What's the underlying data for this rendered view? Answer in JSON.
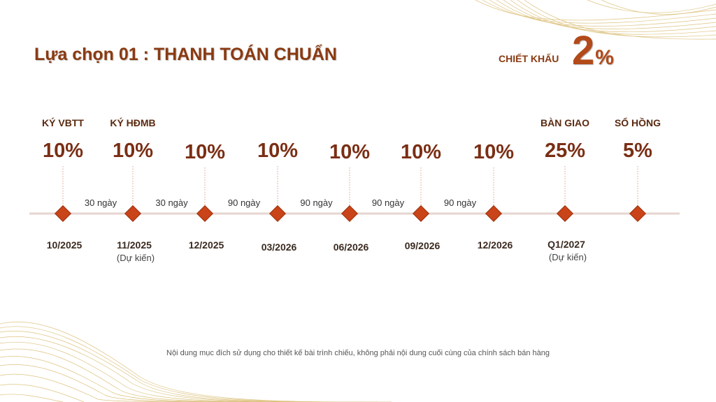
{
  "header": {
    "title": "Lựa chọn 01 : THANH TOÁN CHUẨN",
    "discount_label": "CHIẾT KHẤU",
    "discount_value": "2",
    "discount_unit": "%"
  },
  "colors": {
    "accent": "#b24a1a",
    "marker": "#c94418",
    "timeline": "#e6d6cf",
    "gold_wave": "#d8b96a"
  },
  "milestones": [
    {
      "stage": "KÝ VBTT",
      "percent": "10%",
      "date": "10/2025",
      "note": ""
    },
    {
      "stage": "KÝ HĐMB",
      "percent": "10%",
      "date": "11/2025",
      "note": "(Dự kiến)"
    },
    {
      "stage": "",
      "percent": "10%",
      "date": "12/2025",
      "note": ""
    },
    {
      "stage": "",
      "percent": "10%",
      "date": "03/2026",
      "note": ""
    },
    {
      "stage": "",
      "percent": "10%",
      "date": "06/2026",
      "note": ""
    },
    {
      "stage": "",
      "percent": "10%",
      "date": "09/2026",
      "note": ""
    },
    {
      "stage": "",
      "percent": "10%",
      "date": "12/2026",
      "note": ""
    },
    {
      "stage": "BÀN GIAO",
      "percent": "25%",
      "date": "Q1/2027",
      "note": "(Dự kiến)"
    },
    {
      "stage": "SỔ HỒNG",
      "percent": "5%",
      "date": "",
      "note": ""
    }
  ],
  "intervals": [
    "30 ngày",
    "30 ngày",
    "90 ngày",
    "90 ngày",
    "90 ngày",
    "90 ngày"
  ],
  "footer": {
    "disclaimer": "Nội dung mục đích sử dụng cho thiết kế bài trình chiếu, không phải nội dung cuối cùng của chính sách bán hàng"
  }
}
